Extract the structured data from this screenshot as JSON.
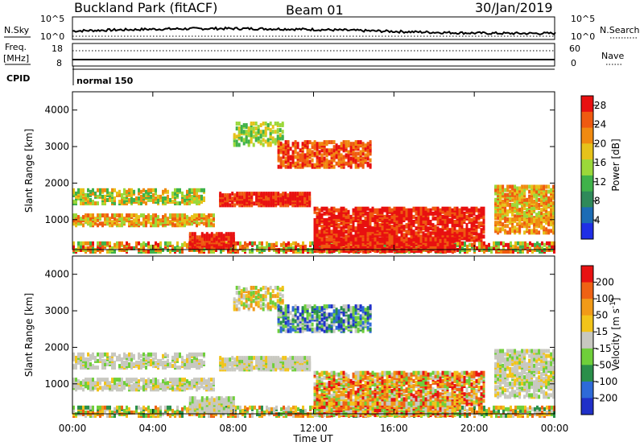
{
  "header": {
    "station": "Buckland Park (fitACF)",
    "beam": "Beam 01",
    "date": "30/Jan/2019"
  },
  "status_panel": {
    "nsky_label": "N.Sky",
    "nsearch_label": "N.Search",
    "noise_top": "10^5",
    "noise_bottom": "10^0",
    "freq_label_1": "Freq.",
    "freq_label_2": "[MHz]",
    "freq_top": "18",
    "freq_bottom": "8",
    "nave_label": "Nave",
    "nave_top": "60",
    "nave_bottom": "0",
    "cpid_label": "CPID",
    "cpid_value": "normal 150"
  },
  "chart_data": [
    {
      "type": "heatmap",
      "title": "Power",
      "xlabel": "",
      "ylabel": "Slant Range [km]",
      "x_ticks": [
        "00:00",
        "04:00",
        "08:00",
        "12:00",
        "16:00",
        "20:00",
        "00:00"
      ],
      "y_ticks": [
        1000,
        2000,
        3000,
        4000
      ],
      "ylim": [
        180,
        4500
      ],
      "colorbar": {
        "label": "Power [dB]",
        "ticks": [
          4,
          8,
          12,
          16,
          20,
          24,
          28
        ],
        "range": [
          0,
          30
        ],
        "colors": [
          "#1f2ee6",
          "#1c6cb5",
          "#2f8a5a",
          "#3fb24a",
          "#9bd83a",
          "#e6c21a",
          "#f08a10",
          "#ef5a10",
          "#e81010"
        ]
      }
    },
    {
      "type": "heatmap",
      "title": "Velocity",
      "xlabel": "Time UT",
      "ylabel": "Slant Range [km]",
      "x_ticks": [
        "00:00",
        "04:00",
        "08:00",
        "12:00",
        "16:00",
        "20:00",
        "00:00"
      ],
      "y_ticks": [
        1000,
        2000,
        3000,
        4000
      ],
      "ylim": [
        180,
        4500
      ],
      "colorbar": {
        "label": "Velocity [m s^-1]",
        "ticks": [
          200,
          100,
          50,
          15,
          -15,
          -50,
          -100,
          -200
        ],
        "colors": [
          "#2030c8",
          "#2e6ad8",
          "#2a8f4a",
          "#6fcf3a",
          "#c8c8c0",
          "#f2c41a",
          "#f19a18",
          "#ef6214",
          "#e81212"
        ]
      }
    }
  ],
  "colors": {
    "ground_scatter": "#c8c8c0",
    "axis": "#000000"
  }
}
